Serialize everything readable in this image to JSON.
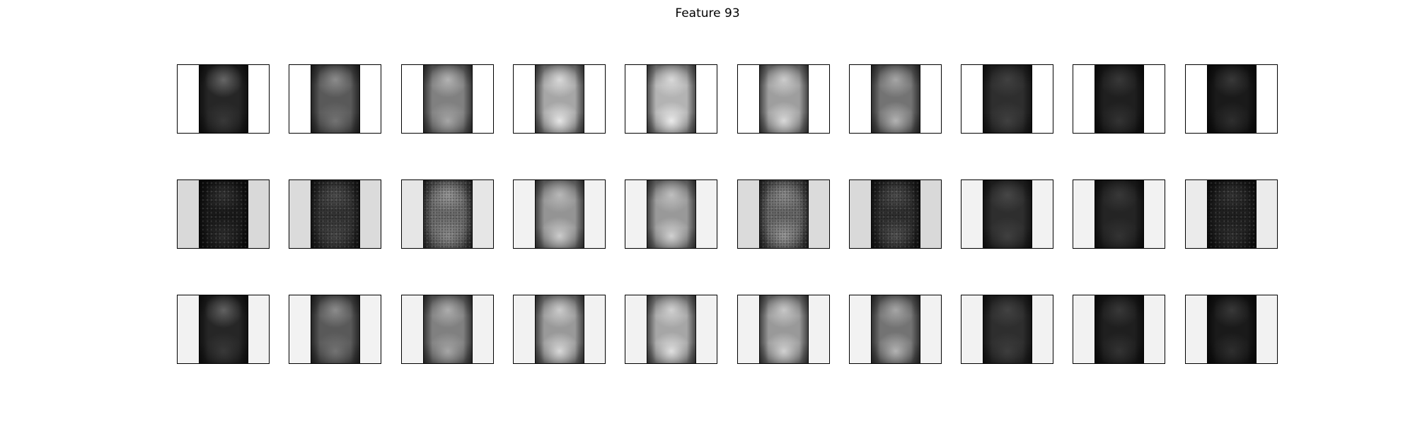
{
  "chart_data": {
    "type": "heatmap",
    "title": "Feature 93",
    "subtype": "image-grid",
    "rows": 3,
    "cols": 10,
    "grid": false,
    "axes_visible": false,
    "panels": [
      {
        "row": 0,
        "col": 0,
        "bg": 1.0,
        "strip": 0.15,
        "top_blob": 0.4,
        "bottom_blob": 0.22,
        "noisy": false
      },
      {
        "row": 0,
        "col": 1,
        "bg": 1.0,
        "strip": 0.35,
        "top_blob": 0.55,
        "bottom_blob": 0.45,
        "noisy": false
      },
      {
        "row": 0,
        "col": 2,
        "bg": 1.0,
        "strip": 0.5,
        "top_blob": 0.7,
        "bottom_blob": 0.65,
        "noisy": false
      },
      {
        "row": 0,
        "col": 3,
        "bg": 1.0,
        "strip": 0.65,
        "top_blob": 0.85,
        "bottom_blob": 0.9,
        "noisy": false
      },
      {
        "row": 0,
        "col": 4,
        "bg": 1.0,
        "strip": 0.7,
        "top_blob": 0.85,
        "bottom_blob": 0.92,
        "noisy": false
      },
      {
        "row": 0,
        "col": 5,
        "bg": 1.0,
        "strip": 0.62,
        "top_blob": 0.8,
        "bottom_blob": 0.85,
        "noisy": false
      },
      {
        "row": 0,
        "col": 6,
        "bg": 1.0,
        "strip": 0.45,
        "top_blob": 0.65,
        "bottom_blob": 0.7,
        "noisy": false
      },
      {
        "row": 0,
        "col": 7,
        "bg": 1.0,
        "strip": 0.18,
        "top_blob": 0.25,
        "bottom_blob": 0.25,
        "noisy": false
      },
      {
        "row": 0,
        "col": 8,
        "bg": 1.0,
        "strip": 0.12,
        "top_blob": 0.22,
        "bottom_blob": 0.2,
        "noisy": false
      },
      {
        "row": 0,
        "col": 9,
        "bg": 1.0,
        "strip": 0.1,
        "top_blob": 0.22,
        "bottom_blob": 0.18,
        "noisy": false
      },
      {
        "row": 1,
        "col": 0,
        "bg": 0.85,
        "strip": 0.1,
        "top_blob": 0.2,
        "bottom_blob": 0.18,
        "noisy": true
      },
      {
        "row": 1,
        "col": 1,
        "bg": 0.86,
        "strip": 0.2,
        "top_blob": 0.3,
        "bottom_blob": 0.28,
        "noisy": true
      },
      {
        "row": 1,
        "col": 2,
        "bg": 0.9,
        "strip": 0.42,
        "top_blob": 0.6,
        "bottom_blob": 0.55,
        "noisy": true
      },
      {
        "row": 1,
        "col": 3,
        "bg": 0.95,
        "strip": 0.58,
        "top_blob": 0.72,
        "bottom_blob": 0.8,
        "noisy": false
      },
      {
        "row": 1,
        "col": 4,
        "bg": 0.95,
        "strip": 0.6,
        "top_blob": 0.75,
        "bottom_blob": 0.82,
        "noisy": false
      },
      {
        "row": 1,
        "col": 5,
        "bg": 0.86,
        "strip": 0.4,
        "top_blob": 0.55,
        "bottom_blob": 0.6,
        "noisy": true
      },
      {
        "row": 1,
        "col": 6,
        "bg": 0.85,
        "strip": 0.18,
        "top_blob": 0.3,
        "bottom_blob": 0.32,
        "noisy": true
      },
      {
        "row": 1,
        "col": 7,
        "bg": 0.95,
        "strip": 0.18,
        "top_blob": 0.28,
        "bottom_blob": 0.25,
        "noisy": false
      },
      {
        "row": 1,
        "col": 8,
        "bg": 0.95,
        "strip": 0.14,
        "top_blob": 0.22,
        "bottom_blob": 0.2,
        "noisy": false
      },
      {
        "row": 1,
        "col": 9,
        "bg": 0.92,
        "strip": 0.12,
        "top_blob": 0.2,
        "bottom_blob": 0.18,
        "noisy": true
      },
      {
        "row": 2,
        "col": 0,
        "bg": 0.95,
        "strip": 0.15,
        "top_blob": 0.38,
        "bottom_blob": 0.22,
        "noisy": false
      },
      {
        "row": 2,
        "col": 1,
        "bg": 0.95,
        "strip": 0.35,
        "top_blob": 0.55,
        "bottom_blob": 0.45,
        "noisy": false
      },
      {
        "row": 2,
        "col": 2,
        "bg": 0.95,
        "strip": 0.5,
        "top_blob": 0.68,
        "bottom_blob": 0.65,
        "noisy": false
      },
      {
        "row": 2,
        "col": 3,
        "bg": 0.95,
        "strip": 0.6,
        "top_blob": 0.8,
        "bottom_blob": 0.85,
        "noisy": false
      },
      {
        "row": 2,
        "col": 4,
        "bg": 0.95,
        "strip": 0.65,
        "top_blob": 0.82,
        "bottom_blob": 0.88,
        "noisy": false
      },
      {
        "row": 2,
        "col": 5,
        "bg": 0.95,
        "strip": 0.6,
        "top_blob": 0.78,
        "bottom_blob": 0.82,
        "noisy": false
      },
      {
        "row": 2,
        "col": 6,
        "bg": 0.95,
        "strip": 0.45,
        "top_blob": 0.65,
        "bottom_blob": 0.7,
        "noisy": false
      },
      {
        "row": 2,
        "col": 7,
        "bg": 0.95,
        "strip": 0.18,
        "top_blob": 0.26,
        "bottom_blob": 0.24,
        "noisy": false
      },
      {
        "row": 2,
        "col": 8,
        "bg": 0.95,
        "strip": 0.12,
        "top_blob": 0.22,
        "bottom_blob": 0.2,
        "noisy": false
      },
      {
        "row": 2,
        "col": 9,
        "bg": 0.95,
        "strip": 0.1,
        "top_blob": 0.22,
        "bottom_blob": 0.18,
        "noisy": false
      }
    ]
  }
}
